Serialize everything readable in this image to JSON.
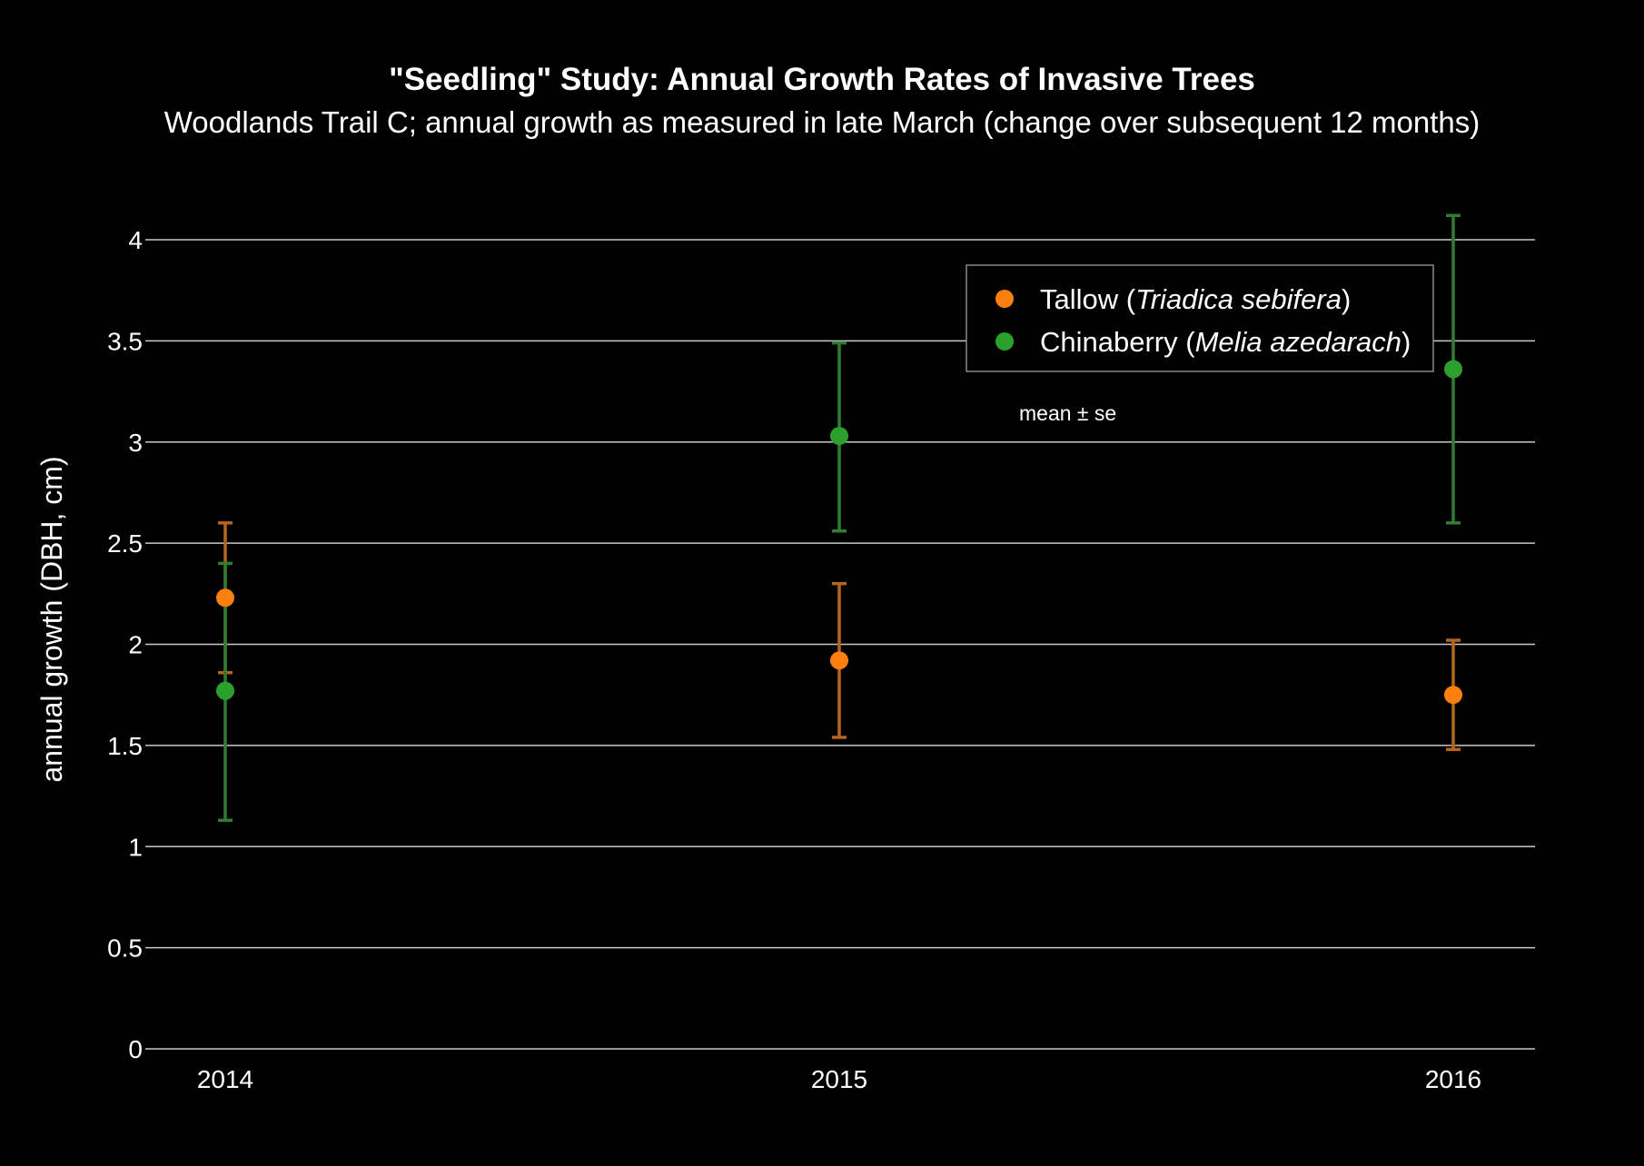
{
  "chart_data": {
    "type": "scatter",
    "title": "\"Seedling\" Study: Annual Growth Rates of Invasive Trees",
    "subtitle": "Woodlands Trail C; annual growth as measured in late March (change over subsequent 12 months)",
    "xlabel": "",
    "ylabel": "annual growth (DBH, cm)",
    "x_categories": [
      "2014",
      "2015",
      "2016"
    ],
    "ylim": [
      0,
      4.2
    ],
    "yticks": [
      0,
      0.5,
      1,
      1.5,
      2,
      2.5,
      3,
      3.5,
      4
    ],
    "ytick_labels": [
      "0",
      "0.5",
      "1",
      "1.5",
      "2",
      "2.5",
      "3",
      "3.5",
      "4"
    ],
    "grid": true,
    "legend_position": "top-right",
    "annotation": "mean ± se",
    "series": [
      {
        "name_plain": "Tallow (",
        "name_italic": "Triadica sebifera",
        "name_close": ")",
        "color": "#ff7f0e",
        "error_color": "#b5651d",
        "x": [
          "2014",
          "2015",
          "2016"
        ],
        "y": [
          2.23,
          1.92,
          1.75
        ],
        "error_upper": [
          2.6,
          2.3,
          2.02
        ],
        "error_lower": [
          1.86,
          1.54,
          1.48
        ]
      },
      {
        "name_plain": "Chinaberry (",
        "name_italic": "Melia azedarach",
        "name_close": ")",
        "color": "#2ca02c",
        "error_color": "#2e7d32",
        "x": [
          "2014",
          "2015",
          "2016"
        ],
        "y": [
          1.77,
          3.03,
          3.36
        ],
        "error_upper": [
          2.4,
          3.49,
          4.12
        ],
        "error_lower": [
          1.13,
          2.56,
          2.6
        ]
      }
    ]
  }
}
